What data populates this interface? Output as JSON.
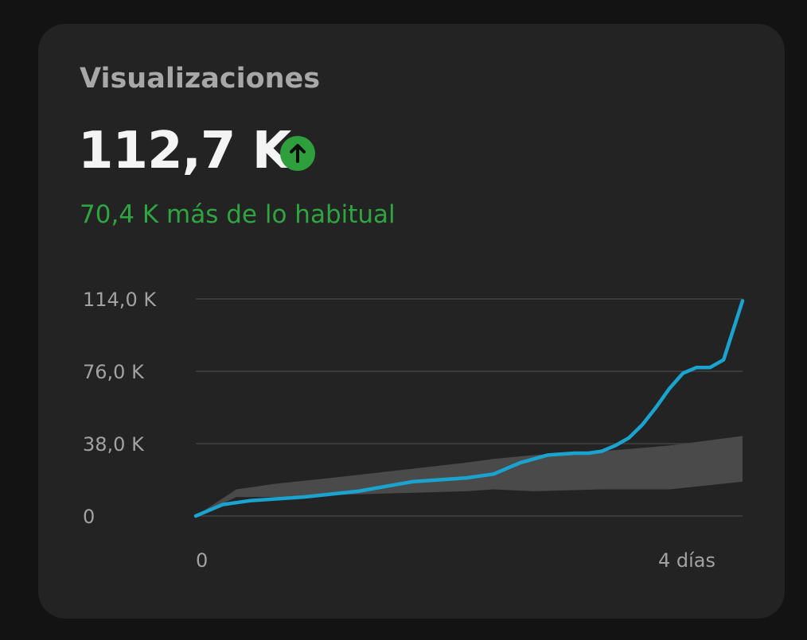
{
  "card": {
    "title": "Visualizaciones",
    "value": "112,7 K",
    "trend_icon": "arrow-up-circle-icon",
    "delta_text": "70,4 K más de lo habitual"
  },
  "colors": {
    "background": "#131313",
    "card": "#232323",
    "title": "#a8a8a8",
    "value": "#f4f4f4",
    "positive": "#2fa541",
    "series_line": "#1aa3cf",
    "typical_band": "#4a4a4a",
    "gridline": "#3a3a3a"
  },
  "chart_data": {
    "type": "line",
    "title": "",
    "xlabel": "",
    "ylabel": "",
    "x_ticks": [
      {
        "value": 0,
        "label": "0"
      },
      {
        "value": 4,
        "label": "4 días"
      }
    ],
    "y_ticks": [
      {
        "value": 0,
        "label": "0"
      },
      {
        "value": 38,
        "label": "38,0 K"
      },
      {
        "value": 76,
        "label": "76,0 K"
      },
      {
        "value": 114,
        "label": "114,0 K"
      }
    ],
    "xlim": [
      0,
      4.04
    ],
    "ylim": [
      0,
      114
    ],
    "grid": true,
    "series": [
      {
        "x": [
          0,
          0.2,
          0.4,
          0.8,
          1.2,
          1.6,
          1.8,
          2.0,
          2.2,
          2.4,
          2.6,
          2.8,
          2.9,
          3.0,
          3.1,
          3.2,
          3.3,
          3.4,
          3.5,
          3.6,
          3.7,
          3.8,
          3.9,
          4.04
        ],
        "y": [
          0,
          6,
          8,
          10,
          13,
          18,
          19,
          20,
          22,
          28,
          32,
          33,
          33,
          34,
          37,
          41,
          48,
          57,
          67,
          75,
          78,
          78,
          82,
          113
        ]
      }
    ],
    "typical_range": {
      "x": [
        0,
        0.3,
        0.6,
        1.0,
        1.5,
        2.0,
        2.2,
        2.5,
        3.0,
        3.5,
        4.04
      ],
      "upper": [
        0,
        14,
        17,
        20,
        24,
        28,
        30,
        32,
        34,
        37,
        42
      ],
      "lower": [
        0,
        10,
        10,
        11,
        12,
        13,
        14,
        13,
        14,
        14,
        18
      ]
    }
  }
}
